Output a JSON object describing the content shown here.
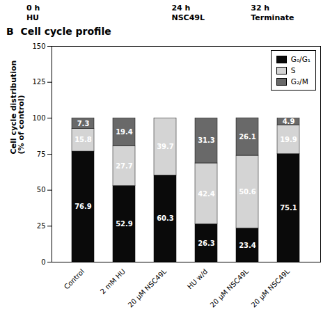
{
  "chart_data": {
    "type": "bar",
    "stacked": true,
    "subtitle": "B  Cell cycle profile",
    "annotations": [
      "0 h\nHU",
      "24 h\nNSC49L",
      "32 h\nTerminate"
    ],
    "ylabel": "Cell cycle distribution\n(% of control)",
    "categories": [
      "Control",
      "2 mM HU",
      "20 μM NSC49L",
      "HU w/d",
      "20 μM NSC49L",
      "20 μM NSC49L"
    ],
    "series": [
      {
        "name": "G₀/G₁",
        "color": "#0a0a0a",
        "values": [
          76.9,
          52.9,
          60.3,
          26.3,
          23.4,
          75.1
        ]
      },
      {
        "name": "S",
        "color": "#d4d4d4",
        "values": [
          15.8,
          27.7,
          39.7,
          42.4,
          50.6,
          19.9
        ]
      },
      {
        "name": "G₂/M",
        "color": "#696969",
        "values": [
          7.3,
          19.4,
          0.0,
          31.3,
          26.1,
          4.9
        ]
      }
    ],
    "ylim": [
      0,
      150
    ],
    "yticks": [
      0,
      25,
      50,
      75,
      100,
      125,
      150
    ],
    "grid": false,
    "legend": "upper right",
    "data_labels": true
  }
}
